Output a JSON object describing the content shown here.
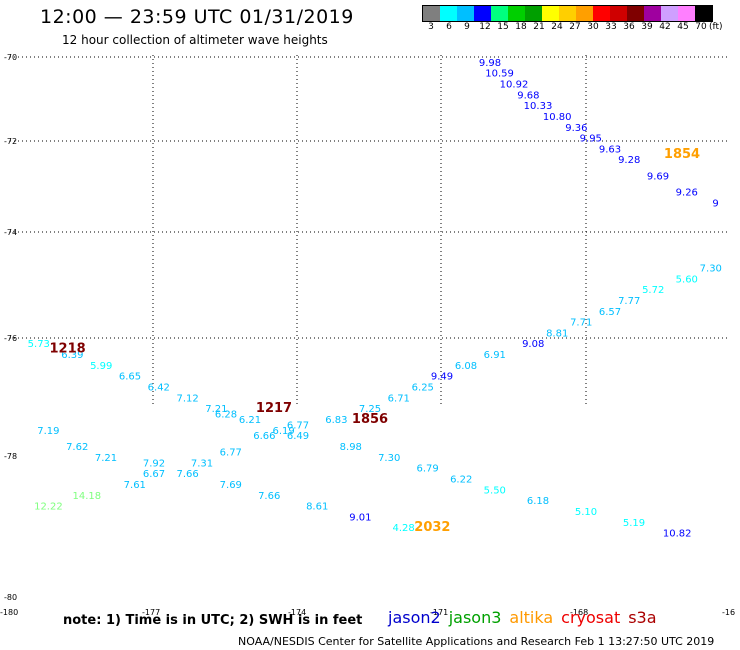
{
  "header": {
    "title": "12:00 — 23:59 UTC 01/31/2019",
    "subtitle": "12 hour collection of altimeter wave heights"
  },
  "color_scale": {
    "unit": "(ft)",
    "bins": [
      {
        "label": "3",
        "color": "#7f7f7f"
      },
      {
        "label": "6",
        "color": "#00ffff"
      },
      {
        "label": "9",
        "color": "#00bfff"
      },
      {
        "label": "12",
        "color": "#0000ff"
      },
      {
        "label": "15",
        "color": "#00ff7f"
      },
      {
        "label": "18",
        "color": "#00cf00"
      },
      {
        "label": "21",
        "color": "#009f00"
      },
      {
        "label": "24",
        "color": "#ffff00"
      },
      {
        "label": "27",
        "color": "#ffcf00"
      },
      {
        "label": "30",
        "color": "#ff9f00"
      },
      {
        "label": "33",
        "color": "#ff0000"
      },
      {
        "label": "36",
        "color": "#cf0000"
      },
      {
        "label": "39",
        "color": "#7f0000"
      },
      {
        "label": "42",
        "color": "#9f009f"
      },
      {
        "label": "45",
        "color": "#cf9fff"
      },
      {
        "label": "70",
        "color": "#ff7fff"
      },
      {
        "label": "",
        "color": "#000000"
      }
    ]
  },
  "chart_data": {
    "type": "scatter",
    "title": "12:00 — 23:59 UTC 01/31/2019",
    "subtitle": "12 hour collection of altimeter wave heights",
    "x_ticks": [
      "-180",
      "-177",
      "-174",
      "-171",
      "-168",
      "-16"
    ],
    "y_ticks": [
      "-70",
      "-72",
      "-74",
      "-76",
      "-78",
      "-80"
    ],
    "xlim": [
      -180,
      -165
    ],
    "ylim": [
      -80.1,
      -69.9
    ],
    "series": [
      {
        "name": "jason2",
        "color": "#0000cc",
        "values": [
          {
            "lon": -170.0,
            "lat": -70.1,
            "swh": "9.98",
            "c": "#0000ff"
          },
          {
            "lon": -169.8,
            "lat": -70.3,
            "swh": "10.59",
            "c": "#0000ff"
          },
          {
            "lon": -169.5,
            "lat": -70.5,
            "swh": "10.92",
            "c": "#0000ff"
          },
          {
            "lon": -169.2,
            "lat": -70.7,
            "swh": "9.68",
            "c": "#0000ff"
          },
          {
            "lon": -169.0,
            "lat": -70.9,
            "swh": "10.33",
            "c": "#0000ff"
          },
          {
            "lon": -168.6,
            "lat": -71.1,
            "swh": "10.80",
            "c": "#0000ff"
          },
          {
            "lon": -168.2,
            "lat": -71.3,
            "swh": "9.36",
            "c": "#0000ff"
          },
          {
            "lon": -167.9,
            "lat": -71.5,
            "swh": "9.95",
            "c": "#0000ff"
          },
          {
            "lon": -167.5,
            "lat": -71.7,
            "swh": "9.63",
            "c": "#0000ff"
          },
          {
            "lon": -167.1,
            "lat": -71.9,
            "swh": "9.28",
            "c": "#0000ff"
          },
          {
            "lon": -166.5,
            "lat": -72.2,
            "swh": "9.69",
            "c": "#0000ff"
          },
          {
            "lon": -165.9,
            "lat": -72.5,
            "swh": "9.26",
            "c": "#0000ff"
          },
          {
            "lon": -165.3,
            "lat": -72.7,
            "swh": "9",
            "c": "#0000ff"
          },
          {
            "lon": -165.4,
            "lat": -73.9,
            "swh": "7.30",
            "c": "#00bfff"
          },
          {
            "lon": -165.9,
            "lat": -74.1,
            "swh": "5.60",
            "c": "#00ffff"
          },
          {
            "lon": -166.6,
            "lat": -74.3,
            "swh": "5.72",
            "c": "#00ffff"
          },
          {
            "lon": -167.1,
            "lat": -74.5,
            "swh": "7.77",
            "c": "#00bfff"
          },
          {
            "lon": -167.5,
            "lat": -74.7,
            "swh": "6.57",
            "c": "#00bfff"
          },
          {
            "lon": -168.1,
            "lat": -74.9,
            "swh": "7.71",
            "c": "#00bfff"
          },
          {
            "lon": -168.6,
            "lat": -75.1,
            "swh": "8.81",
            "c": "#00bfff"
          },
          {
            "lon": -169.1,
            "lat": -75.3,
            "swh": "9.08",
            "c": "#0000ff"
          },
          {
            "lon": -169.9,
            "lat": -75.5,
            "swh": "6.91",
            "c": "#00bfff"
          },
          {
            "lon": -170.5,
            "lat": -75.7,
            "swh": "6.08",
            "c": "#00bfff"
          },
          {
            "lon": -171.0,
            "lat": -75.9,
            "swh": "9.49",
            "c": "#0000ff"
          },
          {
            "lon": -171.4,
            "lat": -76.1,
            "swh": "6.25",
            "c": "#00bfff"
          },
          {
            "lon": -171.9,
            "lat": -76.3,
            "swh": "6.71",
            "c": "#00bfff"
          },
          {
            "lon": -172.5,
            "lat": -76.5,
            "swh": "7.25",
            "c": "#00bfff"
          },
          {
            "lon": -173.2,
            "lat": -76.7,
            "swh": "6.83",
            "c": "#00bfff"
          },
          {
            "lon": -174.0,
            "lat": -76.8,
            "swh": "6.77",
            "c": "#00bfff"
          },
          {
            "lon": -174.3,
            "lat": -76.9,
            "swh": "6.19",
            "c": "#00bfff"
          },
          {
            "lon": -174.0,
            "lat": -77.0,
            "swh": "6.49",
            "c": "#00bfff"
          },
          {
            "lon": -172.9,
            "lat": -77.2,
            "swh": "8.98",
            "c": "#00bfff"
          },
          {
            "lon": -172.1,
            "lat": -77.4,
            "swh": "7.30",
            "c": "#00bfff"
          },
          {
            "lon": -171.3,
            "lat": -77.6,
            "swh": "6.79",
            "c": "#00bfff"
          },
          {
            "lon": -170.6,
            "lat": -77.8,
            "swh": "6.22",
            "c": "#00bfff"
          },
          {
            "lon": -169.9,
            "lat": -78.0,
            "swh": "5.50",
            "c": "#00ffff"
          },
          {
            "lon": -169.0,
            "lat": -78.2,
            "swh": "6.18",
            "c": "#00bfff"
          },
          {
            "lon": -168.0,
            "lat": -78.4,
            "swh": "5.10",
            "c": "#00ffff"
          },
          {
            "lon": -167.0,
            "lat": -78.6,
            "swh": "5.19",
            "c": "#00ffff"
          },
          {
            "lon": -166.1,
            "lat": -78.8,
            "swh": "10.82",
            "c": "#0000ff"
          }
        ]
      },
      {
        "name": "jason3",
        "color": "#00a000",
        "values": [
          {
            "lon": -179.4,
            "lat": -75.3,
            "swh": "5.73",
            "c": "#00ffff"
          },
          {
            "lon": -178.7,
            "lat": -75.5,
            "swh": "6.39",
            "c": "#00bfff"
          },
          {
            "lon": -178.1,
            "lat": -75.7,
            "swh": "5.99",
            "c": "#00ffff"
          },
          {
            "lon": -177.5,
            "lat": -75.9,
            "swh": "6.65",
            "c": "#00bfff"
          },
          {
            "lon": -176.9,
            "lat": -76.1,
            "swh": "6.42",
            "c": "#00bfff"
          },
          {
            "lon": -176.3,
            "lat": -76.3,
            "swh": "7.12",
            "c": "#00bfff"
          },
          {
            "lon": -175.7,
            "lat": -76.5,
            "swh": "7.21",
            "c": "#00bfff"
          },
          {
            "lon": -175.5,
            "lat": -76.6,
            "swh": "6.28",
            "c": "#00bfff"
          },
          {
            "lon": -175.0,
            "lat": -76.7,
            "swh": "6.21",
            "c": "#00bfff"
          },
          {
            "lon": -174.7,
            "lat": -77.0,
            "swh": "6.66",
            "c": "#00bfff"
          },
          {
            "lon": -175.4,
            "lat": -77.3,
            "swh": "6.77",
            "c": "#00bfff"
          },
          {
            "lon": -176.0,
            "lat": -77.5,
            "swh": "7.31",
            "c": "#00bfff"
          },
          {
            "lon": -176.3,
            "lat": -77.7,
            "swh": "7.66",
            "c": "#00bfff"
          },
          {
            "lon": -177.0,
            "lat": -77.5,
            "swh": "7.92",
            "c": "#00bfff"
          },
          {
            "lon": -177.0,
            "lat": -77.7,
            "swh": "6.67",
            "c": "#00bfff"
          },
          {
            "lon": -177.4,
            "lat": -77.9,
            "swh": "7.61",
            "c": "#00bfff"
          },
          {
            "lon": -178.0,
            "lat": -77.4,
            "swh": "7.21",
            "c": "#00bfff"
          },
          {
            "lon": -178.6,
            "lat": -77.2,
            "swh": "7.62",
            "c": "#00bfff"
          },
          {
            "lon": -179.2,
            "lat": -76.9,
            "swh": "7.19",
            "c": "#00bfff"
          },
          {
            "lon": -175.4,
            "lat": -77.9,
            "swh": "7.69",
            "c": "#00bfff"
          },
          {
            "lon": -174.6,
            "lat": -78.1,
            "swh": "7.66",
            "c": "#00bfff"
          },
          {
            "lon": -173.6,
            "lat": -78.3,
            "swh": "8.61",
            "c": "#00bfff"
          },
          {
            "lon": -172.7,
            "lat": -78.5,
            "swh": "9.01",
            "c": "#0000ff"
          },
          {
            "lon": -171.8,
            "lat": -78.7,
            "swh": "4.28",
            "c": "#00ffff"
          },
          {
            "lon": -178.4,
            "lat": -78.1,
            "swh": "14.18",
            "c": "#7fff7f"
          },
          {
            "lon": -179.2,
            "lat": -78.3,
            "swh": "12.22",
            "c": "#7fff7f"
          }
        ]
      }
    ],
    "time_labels": [
      {
        "lon": -178.8,
        "lat": -75.4,
        "text": "1218",
        "c": "#7f0000"
      },
      {
        "lon": -174.5,
        "lat": -76.5,
        "text": "1217",
        "c": "#7f0000"
      },
      {
        "lon": -172.5,
        "lat": -76.7,
        "text": "1856",
        "c": "#7f0000"
      },
      {
        "lon": -166.0,
        "lat": -71.8,
        "text": "1854",
        "c": "#ff9f00"
      },
      {
        "lon": -171.2,
        "lat": -78.7,
        "text": "2032",
        "c": "#ff9f00"
      }
    ]
  },
  "footer": {
    "note": "note: 1) Time is in UTC; 2) SWH is in feet",
    "credit": "NOAA/NESDIS Center for Satellite Applications and Research    Feb  1 13:27:50 UTC 2019",
    "satellites": [
      {
        "label": "jason2",
        "color": "#0000cc"
      },
      {
        "label": "jason3",
        "color": "#00a000"
      },
      {
        "label": "altika",
        "color": "#ff9900"
      },
      {
        "label": "cryosat",
        "color": "#ee0000"
      },
      {
        "label": "s3a",
        "color": "#aa0000"
      }
    ]
  }
}
